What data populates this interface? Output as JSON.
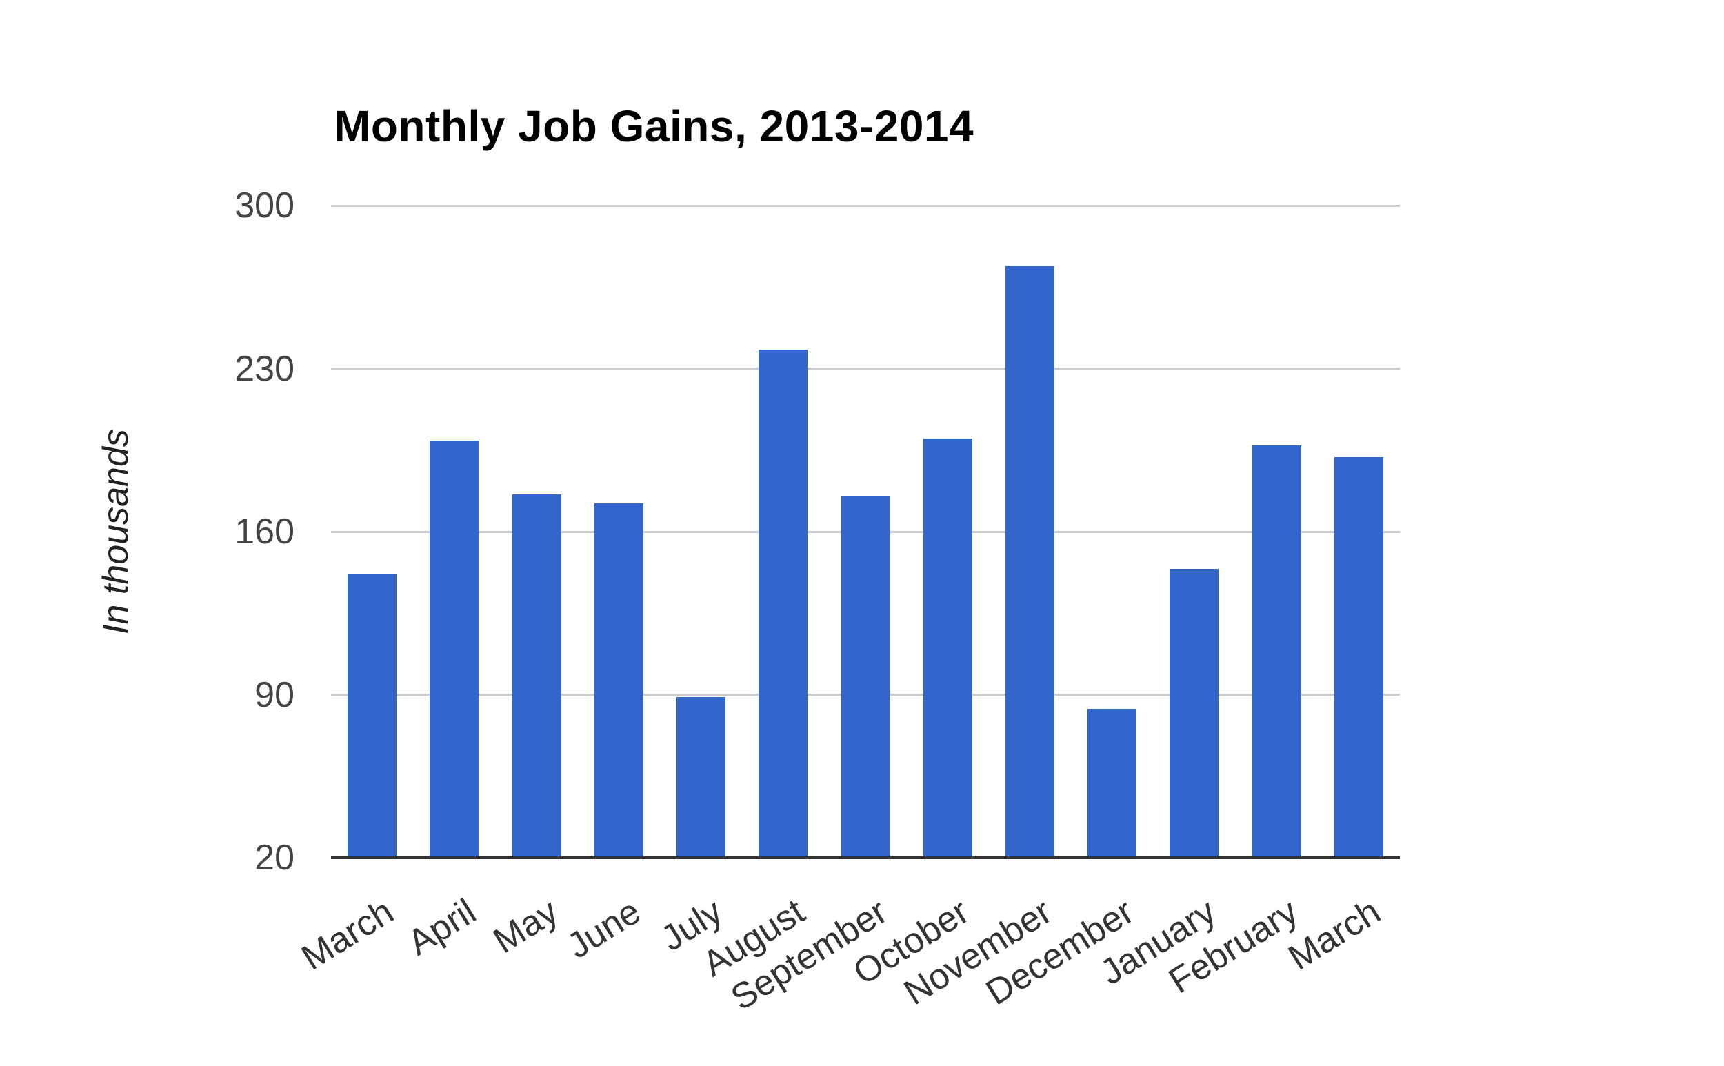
{
  "chart_data": {
    "type": "bar",
    "title": "Monthly Job Gains, 2013-2014",
    "ylabel": "In thousands",
    "xlabel": "",
    "categories": [
      "March",
      "April",
      "May",
      "June",
      "July",
      "August",
      "September",
      "October",
      "November",
      "December",
      "January",
      "February",
      "March"
    ],
    "values": [
      142,
      199,
      176,
      172,
      89,
      238,
      175,
      200,
      274,
      84,
      144,
      197,
      192
    ],
    "series_name": "Monthly job gains",
    "yticks": [
      300,
      230,
      160,
      90,
      20
    ],
    "ylim": [
      20,
      300
    ],
    "grid": true,
    "legend": "none",
    "label_rotation_deg": -32,
    "bar_color": "#3366CC",
    "gridline_color": "#CCCCCC",
    "baseline_color": "#333333",
    "tick_label_color": "#444444",
    "category_label_color": "#333333",
    "title_color": "#000000",
    "background_color": "#FFFFFF"
  }
}
